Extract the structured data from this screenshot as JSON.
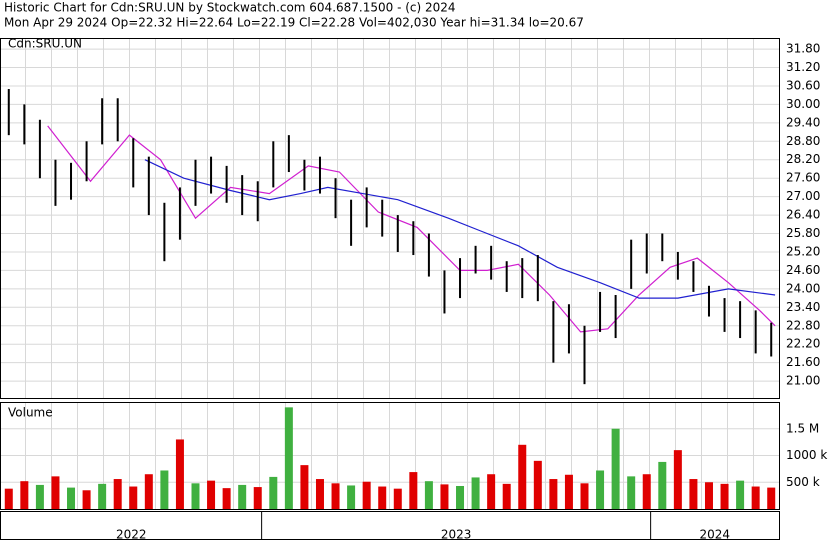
{
  "header": {
    "line1": "Historic Chart for Cdn:SRU.UN by Stockwatch.com 604.687.1500 - (c) 2024",
    "line2": "Mon Apr 29 2024  Op=22.32  Hi=22.64  Lo=22.19  Cl=22.28  Vol=402,030  Year hi=31.34  lo=20.67"
  },
  "chart_data": [
    {
      "type": "hilo",
      "label": "Cdn:SRU.UN",
      "color": "#000000",
      "grid": true,
      "xlim": [
        2022.33,
        2024.33
      ],
      "ylim": [
        20.45,
        32.16
      ],
      "yticks": [
        {
          "value": 21,
          "label": "21.00"
        },
        {
          "value": 21.6,
          "label": "21.60"
        },
        {
          "value": 22.2,
          "label": "22.20"
        },
        {
          "value": 22.8,
          "label": "22.80"
        },
        {
          "value": 23.4,
          "label": "23.40"
        },
        {
          "value": 24,
          "label": "24.00"
        },
        {
          "value": 24.6,
          "label": "24.60"
        },
        {
          "value": 25.2,
          "label": "25.20"
        },
        {
          "value": 25.8,
          "label": "25.80"
        },
        {
          "value": 26.4,
          "label": "26.40"
        },
        {
          "value": 27,
          "label": "27.00"
        },
        {
          "value": 27.6,
          "label": "27.60"
        },
        {
          "value": 28.2,
          "label": "28.20"
        },
        {
          "value": 28.8,
          "label": "28.80"
        },
        {
          "value": 29.4,
          "label": "29.40"
        },
        {
          "value": 30,
          "label": "30.00"
        },
        {
          "value": 30.6,
          "label": "30.60"
        },
        {
          "value": 31.2,
          "label": "31.20"
        },
        {
          "value": 31.8,
          "label": "31.80"
        }
      ],
      "x": [
        2022.35,
        2022.39,
        2022.43,
        2022.47,
        2022.51,
        2022.55,
        2022.59,
        2022.63,
        2022.67,
        2022.71,
        2022.75,
        2022.79,
        2022.83,
        2022.87,
        2022.91,
        2022.95,
        2022.99,
        2023.03,
        2023.07,
        2023.11,
        2023.15,
        2023.19,
        2023.23,
        2023.27,
        2023.31,
        2023.35,
        2023.39,
        2023.43,
        2023.47,
        2023.51,
        2023.55,
        2023.59,
        2023.63,
        2023.67,
        2023.71,
        2023.75,
        2023.79,
        2023.83,
        2023.87,
        2023.91,
        2023.95,
        2023.99,
        2024.03,
        2024.07,
        2024.11,
        2024.15,
        2024.19,
        2024.23,
        2024.27,
        2024.31
      ],
      "high": [
        30.5,
        30.0,
        29.5,
        28.2,
        28.1,
        28.8,
        30.2,
        30.2,
        28.9,
        28.3,
        26.8,
        27.3,
        28.2,
        28.3,
        28.0,
        27.7,
        27.5,
        28.8,
        29.0,
        28.2,
        28.3,
        27.6,
        26.9,
        27.3,
        26.9,
        26.4,
        26.2,
        25.8,
        24.6,
        25.0,
        25.4,
        25.4,
        24.9,
        25.0,
        25.1,
        23.6,
        23.5,
        22.8,
        23.9,
        23.8,
        25.6,
        25.8,
        25.8,
        25.2,
        24.9,
        24.1,
        23.7,
        23.6,
        23.3,
        22.9
      ],
      "low": [
        29.0,
        28.7,
        27.6,
        26.7,
        26.9,
        27.5,
        28.7,
        28.8,
        27.3,
        26.4,
        24.9,
        25.6,
        26.7,
        27.1,
        26.8,
        26.4,
        26.2,
        27.3,
        27.8,
        27.2,
        27.1,
        26.3,
        25.4,
        26.0,
        25.7,
        25.2,
        25.1,
        24.4,
        23.2,
        23.7,
        24.5,
        24.3,
        23.9,
        23.7,
        23.6,
        21.6,
        21.9,
        20.9,
        22.6,
        22.4,
        24.0,
        24.5,
        24.9,
        24.3,
        23.9,
        23.1,
        22.6,
        22.4,
        21.9,
        21.8
      ],
      "lines": [
        {
          "color": "#d020d0",
          "x": [
            2022.45,
            2022.56,
            2022.66,
            2022.74,
            2022.83,
            2022.92,
            2023.02,
            2023.12,
            2023.2,
            2023.3,
            2023.4,
            2023.51,
            2023.58,
            2023.66,
            2023.74,
            2023.82,
            2023.89,
            2023.97,
            2024.05,
            2024.12,
            2024.2,
            2024.28,
            2024.32
          ],
          "values": [
            29.3,
            27.5,
            29.0,
            28.2,
            26.3,
            27.3,
            27.1,
            28.0,
            27.8,
            26.5,
            26.0,
            24.6,
            24.6,
            24.8,
            23.8,
            22.6,
            22.7,
            23.8,
            24.7,
            25.0,
            24.2,
            23.3,
            22.8
          ]
        },
        {
          "color": "#2020d0",
          "x": [
            2022.7,
            2022.8,
            2022.92,
            2023.02,
            2023.1,
            2023.17,
            2023.35,
            2023.48,
            2023.56,
            2023.66,
            2023.76,
            2023.87,
            2023.97,
            2024.07,
            2024.2,
            2024.32
          ],
          "values": [
            28.2,
            27.6,
            27.2,
            26.9,
            27.1,
            27.3,
            26.9,
            26.3,
            25.9,
            25.4,
            24.7,
            24.2,
            23.7,
            23.7,
            24.0,
            23.8
          ]
        }
      ]
    },
    {
      "type": "bar",
      "label": "Volume",
      "grid": true,
      "xlim": [
        2022.33,
        2024.33
      ],
      "ylim": [
        0,
        2000000
      ],
      "yticks": [
        {
          "value": 500000,
          "label": "500 k"
        },
        {
          "value": 1000000,
          "label": "1000 k"
        },
        {
          "value": 1500000,
          "label": "1.5 M"
        }
      ],
      "x": [
        2022.35,
        2022.39,
        2022.43,
        2022.47,
        2022.51,
        2022.55,
        2022.59,
        2022.63,
        2022.67,
        2022.71,
        2022.75,
        2022.79,
        2022.83,
        2022.87,
        2022.91,
        2022.95,
        2022.99,
        2023.03,
        2023.07,
        2023.11,
        2023.15,
        2023.19,
        2023.23,
        2023.27,
        2023.31,
        2023.35,
        2023.39,
        2023.43,
        2023.47,
        2023.51,
        2023.55,
        2023.59,
        2023.63,
        2023.67,
        2023.71,
        2023.75,
        2023.79,
        2023.83,
        2023.87,
        2023.91,
        2023.95,
        2023.99,
        2024.03,
        2024.07,
        2024.11,
        2024.15,
        2024.19,
        2024.23,
        2024.27,
        2024.31
      ],
      "values": [
        380000,
        520000,
        450000,
        610000,
        400000,
        350000,
        470000,
        560000,
        420000,
        650000,
        720000,
        1300000,
        480000,
        530000,
        390000,
        450000,
        410000,
        600000,
        1900000,
        820000,
        560000,
        480000,
        440000,
        510000,
        420000,
        380000,
        690000,
        520000,
        460000,
        430000,
        590000,
        650000,
        470000,
        1200000,
        900000,
        560000,
        640000,
        480000,
        720000,
        1500000,
        610000,
        650000,
        880000,
        1100000,
        560000,
        500000,
        470000,
        530000,
        420000,
        400000
      ],
      "colors": [
        "#e00000",
        "#e00000",
        "#40b040",
        "#e00000",
        "#40b040",
        "#e00000",
        "#40b040",
        "#e00000",
        "#e00000",
        "#e00000",
        "#40b040",
        "#e00000",
        "#40b040",
        "#e00000",
        "#e00000",
        "#40b040",
        "#e00000",
        "#40b040",
        "#40b040",
        "#e00000",
        "#e00000",
        "#e00000",
        "#40b040",
        "#e00000",
        "#e00000",
        "#e00000",
        "#e00000",
        "#40b040",
        "#e00000",
        "#40b040",
        "#40b040",
        "#e00000",
        "#e00000",
        "#e00000",
        "#e00000",
        "#e00000",
        "#e00000",
        "#e00000",
        "#40b040",
        "#40b040",
        "#40b040",
        "#e00000",
        "#40b040",
        "#e00000",
        "#e00000",
        "#e00000",
        "#e00000",
        "#40b040",
        "#e00000",
        "#e00000"
      ]
    }
  ],
  "year_bands": [
    {
      "label": "2022",
      "from": 2022.33,
      "to": 2023
    },
    {
      "label": "2023",
      "from": 2023,
      "to": 2024
    },
    {
      "label": "2024",
      "from": 2024,
      "to": 2024.33
    }
  ]
}
